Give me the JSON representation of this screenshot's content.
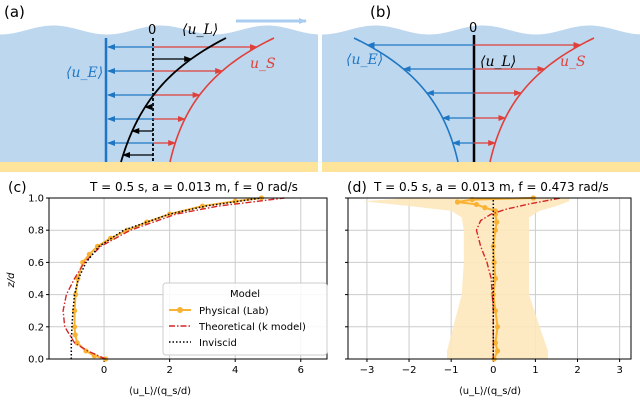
{
  "colors": {
    "water": "#bdd7ee",
    "sand": "#fde49a",
    "euler": "#1f77c4",
    "stokes": "#e0403a",
    "lagr": "#000000",
    "lab": "#f9b233",
    "band": "#fde8bd",
    "theory": "#d62728"
  },
  "schematic": {
    "panel_a": {
      "label": "(a)",
      "zero": "0",
      "uL": "⟨u_L⟩",
      "uE": "⟨u_E⟩",
      "uS": "u_S"
    },
    "panel_b": {
      "label": "(b)",
      "zero": "0",
      "uL": "⟨u_L⟩",
      "uE": "⟨u_E⟩",
      "uS": "u_S"
    }
  },
  "chart_data": [
    {
      "type": "line",
      "panel": "(c)",
      "title": "T = 0.5 s, a = 0.013 m, f = 0 rad/s",
      "xlabel": "⟨u_L⟩/(q_s/d)",
      "ylabel": "z/d",
      "xlim": [
        -1.68,
        6.8
      ],
      "ylim": [
        0,
        1
      ],
      "xticks": [
        0,
        2,
        4,
        6
      ],
      "yticks": [
        0.0,
        0.2,
        0.4,
        0.6,
        0.8,
        1.0
      ],
      "grid": true,
      "legend": {
        "title": "Model",
        "placement": "bottom-right",
        "entries": [
          "Physical (Lab)",
          "Theoretical (k model)",
          "Inviscid"
        ]
      },
      "series": [
        {
          "name": "Physical (Lab)",
          "style": "line-markers",
          "z": [
            0,
            0.02,
            0.05,
            0.1,
            0.15,
            0.2,
            0.3,
            0.4,
            0.5,
            0.6,
            0.65,
            0.7,
            0.75,
            0.8,
            0.85,
            0.9,
            0.95,
            0.98,
            1.0
          ],
          "u": [
            0.05,
            -0.3,
            -0.55,
            -0.82,
            -0.88,
            -0.9,
            -0.9,
            -0.87,
            -0.8,
            -0.65,
            -0.45,
            -0.2,
            0.2,
            0.7,
            1.3,
            2.0,
            3.0,
            4.0,
            4.8
          ]
        },
        {
          "name": "Theoretical (k model)",
          "style": "dashdot",
          "z": [
            0,
            0.05,
            0.1,
            0.2,
            0.3,
            0.4,
            0.5,
            0.6,
            0.7,
            0.8,
            0.9,
            0.95,
            1.0
          ],
          "u": [
            0.05,
            -0.5,
            -0.9,
            -1.2,
            -1.25,
            -1.15,
            -0.9,
            -0.6,
            -0.1,
            0.8,
            2.2,
            3.5,
            5.5
          ]
        },
        {
          "name": "Inviscid",
          "style": "dotted",
          "z": [
            0,
            0.1,
            0.2,
            0.3,
            0.4,
            0.5,
            0.6,
            0.7,
            0.8,
            0.9,
            0.95,
            1.0
          ],
          "u": [
            -1,
            -1,
            -0.98,
            -0.95,
            -0.9,
            -0.78,
            -0.55,
            -0.15,
            0.6,
            2.0,
            3.1,
            4.8
          ]
        }
      ]
    },
    {
      "type": "line",
      "panel": "(d)",
      "title": "T = 0.5 s, a = 0.013 m, f = 0.473 rad/s",
      "xlabel": "⟨u_L⟩/(q_s/d)",
      "xlim": [
        -3.45,
        3.27
      ],
      "ylim": [
        0,
        1
      ],
      "xticks": [
        -3,
        -2,
        -1,
        0,
        1,
        2,
        3
      ],
      "yticks": [
        0.0,
        0.2,
        0.4,
        0.6,
        0.8,
        1.0
      ],
      "grid": true,
      "band": {
        "z": [
          0,
          0.05,
          0.2,
          0.4,
          0.6,
          0.8,
          0.88,
          0.92,
          0.95,
          0.98,
          1.0
        ],
        "lo": [
          -1.1,
          -1.1,
          -0.95,
          -0.75,
          -0.7,
          -0.7,
          -0.75,
          -1.0,
          -2.0,
          -3.1,
          -2.0
        ],
        "hi": [
          1.3,
          1.3,
          1.1,
          0.85,
          0.85,
          0.85,
          0.85,
          1.1,
          1.5,
          1.8,
          1.8
        ]
      },
      "series": [
        {
          "name": "Physical (Lab)",
          "style": "line-markers",
          "z": [
            0,
            0.05,
            0.1,
            0.2,
            0.3,
            0.4,
            0.5,
            0.6,
            0.7,
            0.8,
            0.85,
            0.9,
            0.92,
            0.94,
            0.96,
            0.975,
            0.99,
            1.0
          ],
          "u": [
            0.02,
            0.1,
            0.05,
            0.1,
            0.05,
            0.0,
            0.05,
            0.02,
            0.0,
            0.05,
            0.08,
            0.05,
            0.05,
            -0.2,
            -0.4,
            -0.85,
            -0.5,
            0.95
          ]
        },
        {
          "name": "Theoretical (k model)",
          "style": "dashdot",
          "z": [
            0,
            0.3,
            0.5,
            0.6,
            0.7,
            0.8,
            0.86,
            0.9,
            0.93,
            0.96,
            1.0
          ],
          "u": [
            0,
            0,
            -0.05,
            -0.15,
            -0.3,
            -0.4,
            -0.3,
            -0.05,
            0.3,
            0.8,
            1.6
          ]
        },
        {
          "name": "Inviscid",
          "style": "dotted",
          "z": [
            0,
            1
          ],
          "u": [
            0,
            0
          ]
        }
      ]
    }
  ]
}
